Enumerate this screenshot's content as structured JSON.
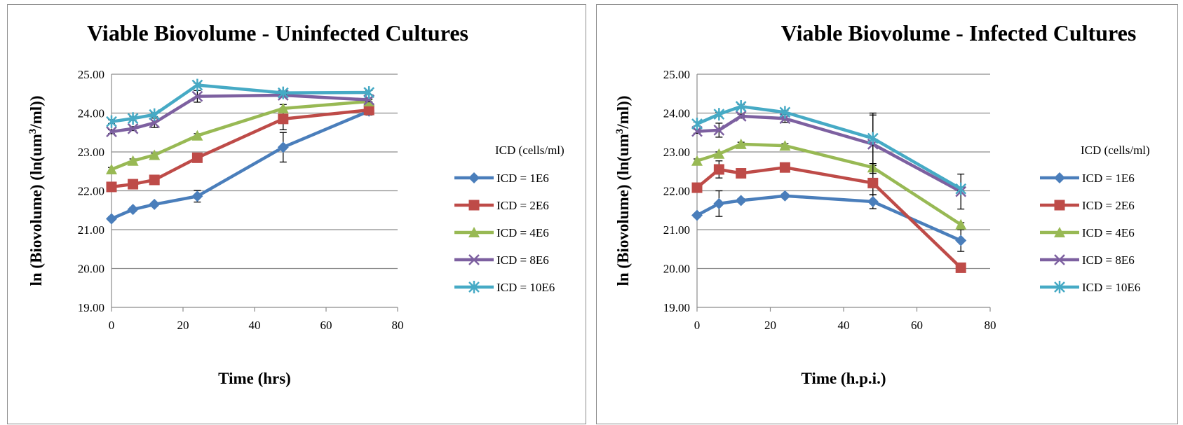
{
  "chart_data": [
    {
      "type": "line",
      "title": "Viable Biovolume - Uninfected Cultures",
      "xlabel": "Time (hrs)",
      "ylabel": "ln (Biovolume) (ln(um",
      "ylabel_sup": "3",
      "ylabel_end": "/ml))",
      "xlim": [
        0,
        80
      ],
      "ylim": [
        19,
        25
      ],
      "xticks": [
        "0",
        "20",
        "40",
        "60",
        "80"
      ],
      "yticks": [
        "19.00",
        "20.00",
        "21.00",
        "22.00",
        "23.00",
        "24.00",
        "25.00"
      ],
      "grid": true,
      "legend_title": "ICD (cells/ml)",
      "legend_position": "right",
      "series": [
        {
          "name": "ICD = 1E6",
          "color": "#4a7ebb",
          "marker": "diamond",
          "x": [
            0,
            6,
            12,
            24,
            48,
            72
          ],
          "y": [
            21.28,
            21.52,
            21.65,
            21.86,
            23.12,
            24.05
          ],
          "err": [
            0.05,
            0.05,
            0.05,
            0.15,
            0.38,
            0.1
          ]
        },
        {
          "name": "ICD = 2E6",
          "color": "#be4b48",
          "marker": "square",
          "x": [
            0,
            6,
            12,
            24,
            48,
            72
          ],
          "y": [
            22.1,
            22.17,
            22.28,
            22.85,
            23.85,
            24.08
          ],
          "err": [
            0.05,
            0.05,
            0.05,
            0.05,
            0.28,
            0.1
          ]
        },
        {
          "name": "ICD = 4E6",
          "color": "#98b954",
          "marker": "triangle",
          "x": [
            0,
            6,
            12,
            24,
            48,
            72
          ],
          "y": [
            22.55,
            22.77,
            22.92,
            23.42,
            24.12,
            24.3
          ],
          "err": [
            0.05,
            0.05,
            0.05,
            0.05,
            0.1,
            0.05
          ]
        },
        {
          "name": "ICD = 8E6",
          "color": "#7d60a0",
          "marker": "x",
          "x": [
            0,
            6,
            12,
            24,
            48,
            72
          ],
          "y": [
            23.52,
            23.6,
            23.75,
            24.43,
            24.46,
            24.34
          ],
          "err": [
            0.05,
            0.05,
            0.12,
            0.15,
            0.05,
            0.05
          ]
        },
        {
          "name": "ICD = 10E6",
          "color": "#46aac5",
          "marker": "star",
          "x": [
            0,
            6,
            12,
            24,
            48,
            72
          ],
          "y": [
            23.78,
            23.86,
            23.96,
            24.72,
            24.52,
            24.53
          ],
          "err": [
            0.05,
            0.05,
            0.05,
            0.05,
            0.05,
            0.05
          ]
        }
      ]
    },
    {
      "type": "line",
      "title": "Viable Biovolume - Infected Cultures",
      "xlabel": "Time (h.p.i.)",
      "ylabel": "ln (Biovolume) (ln(um",
      "ylabel_sup": "3",
      "ylabel_end": "/ml))",
      "xlim": [
        0,
        80
      ],
      "ylim": [
        19,
        25
      ],
      "xticks": [
        "0",
        "20",
        "40",
        "60",
        "80"
      ],
      "yticks": [
        "19.00",
        "20.00",
        "21.00",
        "22.00",
        "23.00",
        "24.00",
        "25.00"
      ],
      "grid": true,
      "legend_title": "ICD (cells/ml)",
      "legend_position": "right",
      "series": [
        {
          "name": "ICD = 1E6",
          "color": "#4a7ebb",
          "marker": "diamond",
          "x": [
            0,
            6,
            12,
            24,
            48,
            72
          ],
          "y": [
            21.37,
            21.67,
            21.75,
            21.87,
            21.72,
            20.72
          ],
          "err": [
            0.05,
            0.33,
            0.05,
            0.05,
            0.18,
            0.28
          ]
        },
        {
          "name": "ICD = 2E6",
          "color": "#be4b48",
          "marker": "square",
          "x": [
            0,
            6,
            12,
            24,
            48,
            72
          ],
          "y": [
            22.08,
            22.55,
            22.45,
            22.6,
            22.2,
            20.02
          ],
          "err": [
            0.05,
            0.22,
            0.05,
            0.05,
            0.3,
            0.05
          ]
        },
        {
          "name": "ICD = 4E6",
          "color": "#98b954",
          "marker": "triangle",
          "x": [
            0,
            6,
            12,
            24,
            48,
            72
          ],
          "y": [
            22.77,
            22.95,
            23.2,
            23.16,
            22.6,
            21.13
          ],
          "err": [
            0.05,
            0.05,
            0.05,
            0.05,
            0.05,
            0.05
          ]
        },
        {
          "name": "ICD = 8E6",
          "color": "#7d60a0",
          "marker": "x",
          "x": [
            0,
            6,
            12,
            24,
            48,
            72
          ],
          "y": [
            23.53,
            23.56,
            23.92,
            23.86,
            23.2,
            21.98
          ],
          "err": [
            0.05,
            0.18,
            0.05,
            0.1,
            0.75,
            0.45
          ]
        },
        {
          "name": "ICD = 10E6",
          "color": "#46aac5",
          "marker": "star",
          "x": [
            0,
            6,
            12,
            24,
            48,
            72
          ],
          "y": [
            23.72,
            23.97,
            24.17,
            24.02,
            23.35,
            22.05
          ],
          "err": [
            0.05,
            0.05,
            0.05,
            0.05,
            0.65,
            0.05
          ]
        }
      ]
    }
  ]
}
